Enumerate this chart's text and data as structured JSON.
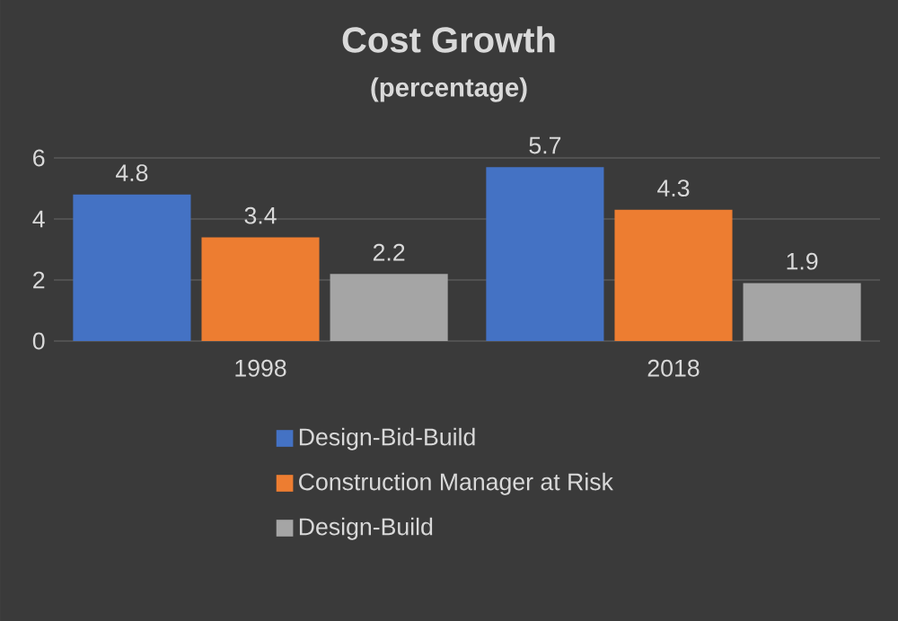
{
  "chart_data": {
    "type": "bar",
    "title": "Cost Growth",
    "subtitle": "(percentage)",
    "categories": [
      "1998",
      "2018"
    ],
    "series": [
      {
        "name": "Design-Bid-Build",
        "color": "#4472c4",
        "values": [
          4.8,
          5.7
        ]
      },
      {
        "name": "Construction Manager at Risk",
        "color": "#ed7d31",
        "values": [
          3.4,
          4.3
        ]
      },
      {
        "name": "Design-Build",
        "color": "#a5a5a5",
        "values": [
          2.2,
          1.9
        ]
      }
    ],
    "ylim": [
      0,
      6
    ],
    "yticks": [
      0,
      2,
      4,
      6
    ],
    "grid": "y",
    "legend": "bottom",
    "data_labels": true
  }
}
